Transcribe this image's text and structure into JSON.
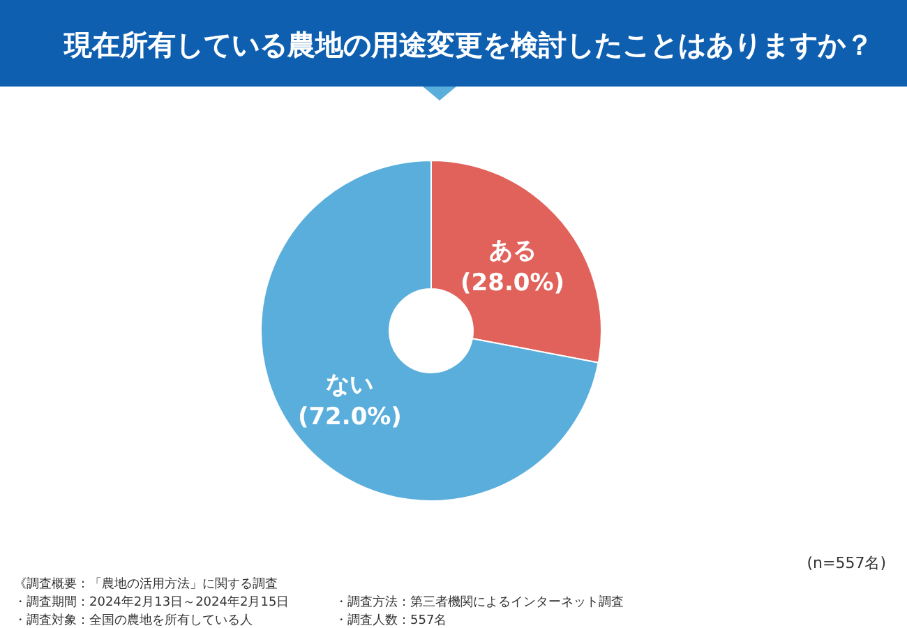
{
  "chart_data": {
    "type": "donut",
    "title": "現在所有している農地の用途変更を検討したことはありますか？",
    "categories": [
      "ある",
      "ない"
    ],
    "values": [
      28.0,
      72.0
    ],
    "colors": [
      "#e0625a",
      "#5aaedb"
    ],
    "value_labels": [
      "(28.0%)",
      "(72.0%)"
    ],
    "annotations": [
      "(n=557名)",
      "《調査概要：「農地の活用方法」に関する調査",
      "・調査期間：2024年2月13日～2024年2月15日",
      "・調査対象：全国の農地を所有している人",
      "・調査方法：第三者機関によるインターネット調査",
      "・調査人数：557名"
    ]
  }
}
